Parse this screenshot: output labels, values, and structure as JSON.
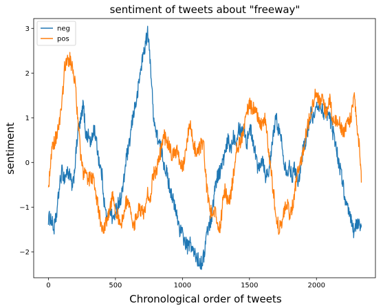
{
  "chart_data": {
    "type": "line",
    "title": "sentiment of tweets about \"freeway\"",
    "xlabel": "Chronological order of tweets",
    "ylabel": "sentiment",
    "xlim": [
      -110,
      2440
    ],
    "ylim": [
      -2.58,
      3.22
    ],
    "xticks": [
      0,
      500,
      1000,
      1500,
      2000
    ],
    "yticks": [
      -2,
      -1,
      0,
      1,
      2,
      3
    ],
    "grid": false,
    "legend": "top-left",
    "series": [
      {
        "name": "neg",
        "color": "#1f77b4",
        "points": [
          [
            0,
            -1.25
          ],
          [
            20,
            -1.25
          ],
          [
            40,
            -1.5
          ],
          [
            60,
            -1.2
          ],
          [
            80,
            -0.6
          ],
          [
            100,
            -0.2
          ],
          [
            120,
            -0.35
          ],
          [
            140,
            -0.2
          ],
          [
            160,
            -0.3
          ],
          [
            180,
            -0.6
          ],
          [
            200,
            0.0
          ],
          [
            220,
            0.7
          ],
          [
            240,
            0.9
          ],
          [
            260,
            1.3
          ],
          [
            280,
            0.6
          ],
          [
            300,
            0.6
          ],
          [
            320,
            0.4
          ],
          [
            340,
            0.8
          ],
          [
            360,
            0.4
          ],
          [
            380,
            0.0
          ],
          [
            400,
            -0.3
          ],
          [
            420,
            -1.0
          ],
          [
            440,
            -1.3
          ],
          [
            460,
            -1.0
          ],
          [
            480,
            -1.3
          ],
          [
            500,
            -1.1
          ],
          [
            520,
            -0.9
          ],
          [
            540,
            -0.8
          ],
          [
            560,
            -0.5
          ],
          [
            580,
            0.1
          ],
          [
            600,
            0.3
          ],
          [
            620,
            0.8
          ],
          [
            640,
            1.2
          ],
          [
            660,
            1.4
          ],
          [
            680,
            1.9
          ],
          [
            700,
            2.3
          ],
          [
            720,
            2.6
          ],
          [
            740,
            2.9
          ],
          [
            760,
            2.3
          ],
          [
            780,
            1.2
          ],
          [
            800,
            0.7
          ],
          [
            820,
            0.5
          ],
          [
            840,
            0.3
          ],
          [
            860,
            0.0
          ],
          [
            880,
            -0.2
          ],
          [
            900,
            -0.5
          ],
          [
            920,
            -0.7
          ],
          [
            940,
            -1.0
          ],
          [
            960,
            -1.2
          ],
          [
            980,
            -1.5
          ],
          [
            1000,
            -1.6
          ],
          [
            1020,
            -1.8
          ],
          [
            1040,
            -1.9
          ],
          [
            1060,
            -1.8
          ],
          [
            1080,
            -2.0
          ],
          [
            1100,
            -2.1
          ],
          [
            1120,
            -2.2
          ],
          [
            1140,
            -2.25
          ],
          [
            1160,
            -2.1
          ],
          [
            1180,
            -1.6
          ],
          [
            1200,
            -1.4
          ],
          [
            1220,
            -1.2
          ],
          [
            1240,
            -0.6
          ],
          [
            1260,
            -0.3
          ],
          [
            1280,
            -0.2
          ],
          [
            1300,
            0.0
          ],
          [
            1320,
            0.2
          ],
          [
            1340,
            0.5
          ],
          [
            1360,
            0.3
          ],
          [
            1380,
            0.6
          ],
          [
            1400,
            0.5
          ],
          [
            1420,
            0.8
          ],
          [
            1440,
            0.7
          ],
          [
            1460,
            0.8
          ],
          [
            1480,
            0.4
          ],
          [
            1500,
            0.8
          ],
          [
            1520,
            0.6
          ],
          [
            1540,
            0.3
          ],
          [
            1560,
            -0.1
          ],
          [
            1580,
            0.0
          ],
          [
            1600,
            0.1
          ],
          [
            1620,
            -0.3
          ],
          [
            1640,
            -0.2
          ],
          [
            1660,
            0.1
          ],
          [
            1680,
            0.7
          ],
          [
            1700,
            1.0
          ],
          [
            1720,
            0.7
          ],
          [
            1740,
            0.5
          ],
          [
            1760,
            0.0
          ],
          [
            1780,
            -0.2
          ],
          [
            1800,
            -0.1
          ],
          [
            1820,
            -0.3
          ],
          [
            1840,
            -0.1
          ],
          [
            1860,
            -0.4
          ],
          [
            1880,
            -0.2
          ],
          [
            1900,
            0.3
          ],
          [
            1920,
            0.5
          ],
          [
            1940,
            0.8
          ],
          [
            1960,
            1.1
          ],
          [
            1980,
            1.0
          ],
          [
            2000,
            1.2
          ],
          [
            2020,
            1.3
          ],
          [
            2040,
            1.2
          ],
          [
            2060,
            1.1
          ],
          [
            2080,
            1.1
          ],
          [
            2100,
            1.0
          ],
          [
            2120,
            0.7
          ],
          [
            2140,
            0.5
          ],
          [
            2160,
            0.1
          ],
          [
            2180,
            -0.2
          ],
          [
            2200,
            -0.5
          ],
          [
            2220,
            -1.0
          ],
          [
            2240,
            -1.1
          ],
          [
            2260,
            -1.3
          ],
          [
            2280,
            -1.55
          ],
          [
            2300,
            -1.4
          ],
          [
            2320,
            -1.35
          ],
          [
            2335,
            -1.4
          ]
        ]
      },
      {
        "name": "pos",
        "color": "#ff7f0e",
        "points": [
          [
            0,
            -0.6
          ],
          [
            20,
            0.2
          ],
          [
            40,
            0.4
          ],
          [
            60,
            0.6
          ],
          [
            80,
            0.9
          ],
          [
            100,
            1.2
          ],
          [
            120,
            2.1
          ],
          [
            140,
            2.3
          ],
          [
            160,
            2.3
          ],
          [
            180,
            2.1
          ],
          [
            200,
            1.8
          ],
          [
            220,
            0.9
          ],
          [
            240,
            0.2
          ],
          [
            260,
            -0.3
          ],
          [
            280,
            -0.2
          ],
          [
            300,
            -0.4
          ],
          [
            320,
            -0.3
          ],
          [
            340,
            -0.4
          ],
          [
            360,
            -0.8
          ],
          [
            380,
            -1.2
          ],
          [
            400,
            -1.4
          ],
          [
            420,
            -1.5
          ],
          [
            440,
            -1.2
          ],
          [
            460,
            -1.0
          ],
          [
            480,
            -0.7
          ],
          [
            500,
            -1.1
          ],
          [
            520,
            -1.2
          ],
          [
            540,
            -1.4
          ],
          [
            560,
            -1.2
          ],
          [
            580,
            -0.9
          ],
          [
            600,
            -1.0
          ],
          [
            620,
            -1.2
          ],
          [
            640,
            -1.4
          ],
          [
            660,
            -1.2
          ],
          [
            680,
            -1.0
          ],
          [
            700,
            -1.1
          ],
          [
            720,
            -1.1
          ],
          [
            740,
            -0.7
          ],
          [
            760,
            -0.8
          ],
          [
            780,
            -0.3
          ],
          [
            800,
            -0.2
          ],
          [
            820,
            0.0
          ],
          [
            840,
            0.3
          ],
          [
            860,
            0.6
          ],
          [
            880,
            0.5
          ],
          [
            900,
            0.4
          ],
          [
            920,
            0.1
          ],
          [
            940,
            0.2
          ],
          [
            960,
            0.3
          ],
          [
            980,
            0.0
          ],
          [
            1000,
            -0.1
          ],
          [
            1020,
            0.1
          ],
          [
            1040,
            0.6
          ],
          [
            1060,
            0.8
          ],
          [
            1080,
            0.5
          ],
          [
            1100,
            0.2
          ],
          [
            1120,
            0.3
          ],
          [
            1140,
            0.4
          ],
          [
            1160,
            0.3
          ],
          [
            1180,
            -0.5
          ],
          [
            1200,
            -1.0
          ],
          [
            1220,
            -1.2
          ],
          [
            1240,
            -1.1
          ],
          [
            1260,
            -1.3
          ],
          [
            1280,
            -1.5
          ],
          [
            1300,
            -0.9
          ],
          [
            1320,
            -0.6
          ],
          [
            1340,
            -0.9
          ],
          [
            1360,
            -0.7
          ],
          [
            1380,
            -0.3
          ],
          [
            1400,
            0.3
          ],
          [
            1420,
            0.4
          ],
          [
            1440,
            0.5
          ],
          [
            1460,
            0.8
          ],
          [
            1480,
            1.1
          ],
          [
            1500,
            1.3
          ],
          [
            1520,
            1.2
          ],
          [
            1540,
            1.2
          ],
          [
            1560,
            1.0
          ],
          [
            1580,
            0.9
          ],
          [
            1600,
            0.8
          ],
          [
            1620,
            1.0
          ],
          [
            1640,
            0.3
          ],
          [
            1660,
            -0.2
          ],
          [
            1680,
            -0.7
          ],
          [
            1700,
            -1.2
          ],
          [
            1720,
            -1.5
          ],
          [
            1740,
            -1.4
          ],
          [
            1760,
            -1.1
          ],
          [
            1780,
            -0.9
          ],
          [
            1800,
            -1.2
          ],
          [
            1820,
            -1.0
          ],
          [
            1840,
            -0.6
          ],
          [
            1860,
            -0.2
          ],
          [
            1880,
            0.0
          ],
          [
            1900,
            0.2
          ],
          [
            1920,
            0.6
          ],
          [
            1940,
            0.9
          ],
          [
            1960,
            1.2
          ],
          [
            1980,
            1.4
          ],
          [
            2000,
            1.6
          ],
          [
            2020,
            1.3
          ],
          [
            2040,
            1.5
          ],
          [
            2060,
            1.2
          ],
          [
            2080,
            1.1
          ],
          [
            2100,
            1.4
          ],
          [
            2120,
            1.0
          ],
          [
            2140,
            0.9
          ],
          [
            2160,
            1.0
          ],
          [
            2180,
            0.8
          ],
          [
            2200,
            0.6
          ],
          [
            2220,
            0.8
          ],
          [
            2240,
            0.9
          ],
          [
            2260,
            1.0
          ],
          [
            2280,
            1.6
          ],
          [
            2300,
            0.9
          ],
          [
            2320,
            0.3
          ],
          [
            2335,
            -0.45
          ]
        ]
      }
    ]
  }
}
